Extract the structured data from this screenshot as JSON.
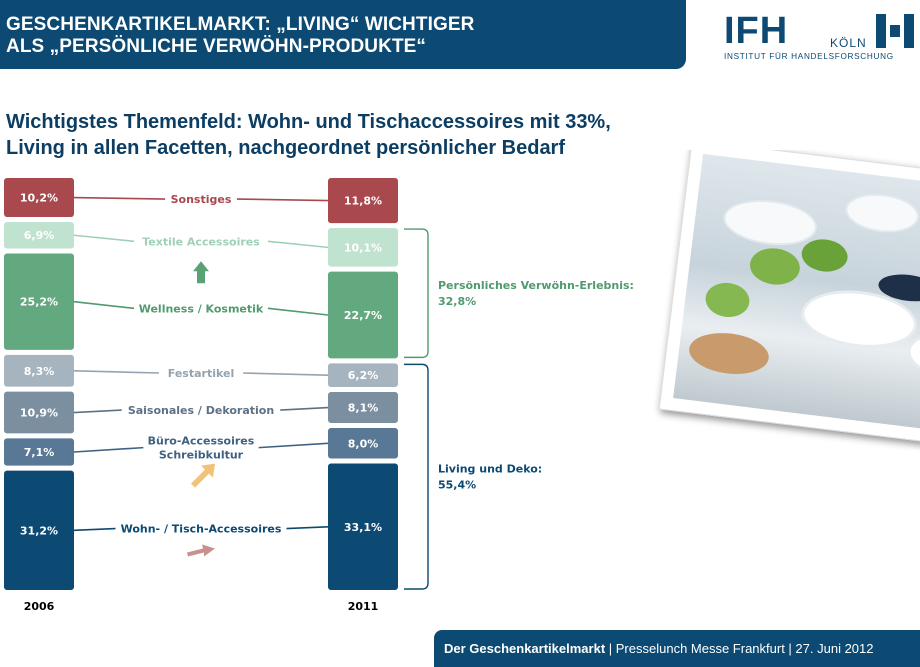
{
  "header": {
    "title_line1": "GESCHENKARTIKELMARKT: „LIVING“ WICHTIGER",
    "title_line2": "ALS „PERSÖNLICHE VERWÖHN-PRODUKTE“"
  },
  "logo": {
    "mark": "IFH",
    "city": "KÖLN",
    "subtitle": "INSTITUT FÜR HANDELSFORSCHUNG"
  },
  "subtitle": {
    "line1": "Wichtigstes Themenfeld: Wohn- und Tischaccessoires mit 33%,",
    "line2": "Living in allen Facetten, nachgeordnet persönlicher Bedarf"
  },
  "chart_data": {
    "type": "bar",
    "stacked": true,
    "unit": "%",
    "columns": [
      "2006",
      "2011"
    ],
    "categories": [
      {
        "name": "Sonstiges",
        "values": [
          "10,2%",
          "11,8%"
        ],
        "color": "#a9484d",
        "label_color": "#a9484d",
        "text_color": "#ffffff"
      },
      {
        "name": "Textile Accessoires",
        "values": [
          "6,9%",
          "10,1%"
        ],
        "color": "#bfe3cf",
        "label_color": "#9fd1b6",
        "text_color": "#ffffff"
      },
      {
        "name": "Wellness / Kosmetik",
        "values": [
          "25,2%",
          "22,7%"
        ],
        "color": "#62a97f",
        "label_color": "#4f9a6e",
        "text_color": "#ffffff"
      },
      {
        "name": "Festartikel",
        "values": [
          "8,3%",
          "6,2%"
        ],
        "color": "#a6b4bf",
        "label_color": "#94a3af",
        "text_color": "#ffffff"
      },
      {
        "name": "Saisonales / Dekoration",
        "values": [
          "10,9%",
          "8,1%"
        ],
        "color": "#7c8fa0",
        "label_color": "#5d7184",
        "text_color": "#ffffff"
      },
      {
        "name": "Büro-Accessoires Schreibkultur",
        "label_lines": [
          "Büro-Accessoires",
          "Schreibkultur"
        ],
        "values": [
          "7,1%",
          "8,0%"
        ],
        "color": "#587896",
        "label_color": "#3f6283",
        "text_color": "#ffffff"
      },
      {
        "name": "Wohn- / Tisch-Accessoires",
        "values": [
          "31,2%",
          "33,1%"
        ],
        "color": "#0c4a73",
        "label_color": "#0c4a73",
        "text_color": "#ffffff"
      }
    ],
    "groups": [
      {
        "label": "Persönliches Verwöhn-Erlebnis:",
        "value": "32,8%",
        "color": "#4f9a6e"
      },
      {
        "label": "Living und Deko:",
        "value": "55,4%",
        "color": "#0c4a73"
      }
    ],
    "arrows": [
      {
        "target": "Textile Accessoires",
        "direction": "up",
        "color": "#5aa276",
        "icon": "arrow-up-icon"
      },
      {
        "target": "Büro-Accessoires Schreibkultur",
        "direction": "up-right",
        "color": "#f1c27a",
        "icon": "arrow-up-right-icon"
      },
      {
        "target": "Wohn- / Tisch-Accessoires",
        "direction": "right",
        "color": "#c9908e",
        "icon": "arrow-right-icon"
      }
    ]
  },
  "footer": {
    "bold": "Der Geschenkartikelmarkt",
    "rest": " | Presselunch Messe Frankfurt | 27. Juni 2012"
  },
  "photo": {
    "icon": "table-setting-photo"
  }
}
